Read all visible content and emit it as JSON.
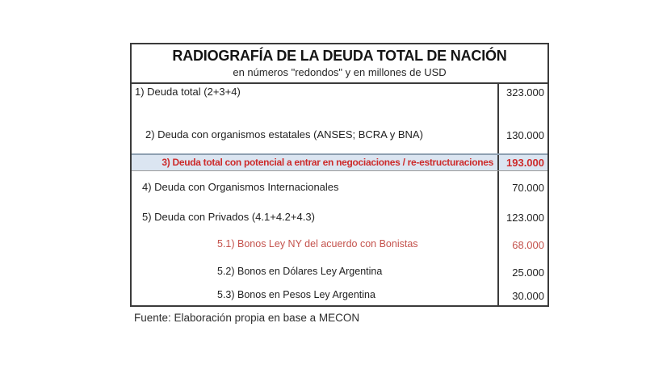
{
  "table": {
    "title": "RADIOGRAFÍA DE LA DEUDA TOTAL DE NACIÓN",
    "subtitle": "en números \"redondos\" y en millones de USD",
    "rows": [
      {
        "label": "1) Deuda total (2+3+4)",
        "value": "323.000"
      },
      {
        "label": "2) Deuda con organismos estatales (ANSES; BCRA y BNA)",
        "value": "130.000"
      },
      {
        "label": "3)  Deuda total con potencial a entrar en negociaciones / re-estructuraciones",
        "value": "193.000"
      },
      {
        "label": "4) Deuda con Organismos Internacionales",
        "value": "70.000"
      },
      {
        "label": "5) Deuda con Privados (4.1+4.2+4.3)",
        "value": "123.000"
      },
      {
        "label": "5.1) Bonos Ley NY del acuerdo con Bonistas",
        "value": "68.000"
      },
      {
        "label": "5.2) Bonos en Dólares Ley Argentina",
        "value": "25.000"
      },
      {
        "label": "5.3) Bonos en Pesos Ley Argentina",
        "value": "30.000"
      }
    ],
    "source": "Fuente: Elaboración propia en base a MECON"
  },
  "colors": {
    "border_dark": "#3b3b3b",
    "highlight_background": "#dbe5f1",
    "highlight_border_top": "#8d9fb1",
    "red_strong": "#cd2b2b",
    "red_soft": "#c4524c"
  },
  "chart_data": {
    "type": "table",
    "title": "RADIOGRAFÍA DE LA DEUDA TOTAL DE NACIÓN",
    "subtitle": "en números \"redondos\" y en millones de USD",
    "unit": "millones de USD",
    "categories": [
      "1) Deuda total (2+3+4)",
      "2) Deuda con organismos estatales (ANSES; BCRA y BNA)",
      "3) Deuda total con potencial a entrar en negociaciones / re-estructuraciones",
      "4) Deuda con Organismos Internacionales",
      "5) Deuda con Privados (4.1+4.2+4.3)",
      "5.1) Bonos Ley NY del acuerdo con Bonistas",
      "5.2) Bonos en Dólares Ley Argentina",
      "5.3) Bonos en Pesos Ley Argentina"
    ],
    "values": [
      323000,
      130000,
      193000,
      70000,
      123000,
      68000,
      25000,
      30000
    ],
    "highlighted_rows": [
      2
    ],
    "red_rows": [
      2,
      5
    ],
    "source": "Fuente: Elaboración propia en base a MECON"
  }
}
